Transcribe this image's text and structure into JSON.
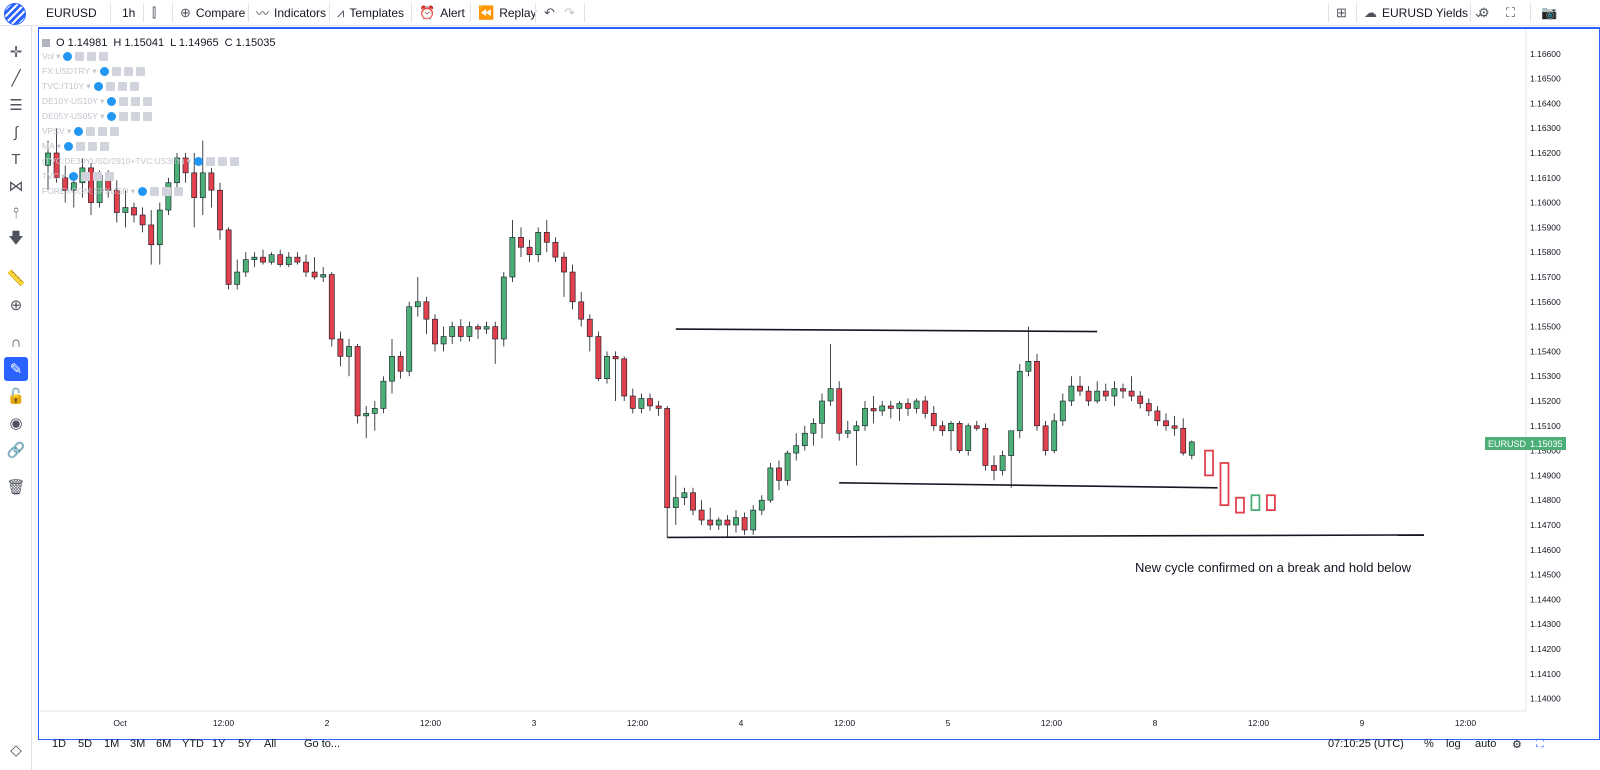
{
  "toolbar": {
    "symbol": "EURUSD",
    "interval": "1h",
    "compare": "Compare",
    "indicators": "Indicators",
    "templates": "Templates",
    "alert": "Alert",
    "replay": "Replay",
    "layout_name": "EURUSD Yields"
  },
  "legend": {
    "open": "O 1.14981",
    "high": "H 1.15041",
    "low": "L 1.14965",
    "close": "C 1.15035",
    "studies": [
      "Vol",
      "FX:USDTRY",
      "TVC:IT10Y",
      "DE10Y-US10Y",
      "DE05Y-US05Y",
      "VPSV",
      "MA",
      "(TVC:DE30YUSD/2910+TVC:US30Y)",
      "TVC",
      "FOREXCOM:SPXUSD"
    ]
  },
  "price_scale": {
    "labels": [
      "1.16600",
      "1.16500",
      "1.16400",
      "1.16300",
      "1.16200",
      "1.16100",
      "1.16000",
      "1.15900",
      "1.15800",
      "1.15700",
      "1.15600",
      "1.15500",
      "1.15400",
      "1.15300",
      "1.15200",
      "1.15100",
      "1.15000",
      "1.14900",
      "1.14800",
      "1.14700",
      "1.14600",
      "1.14500",
      "1.14400",
      "1.14300",
      "1.14200",
      "1.14100",
      "1.14000"
    ],
    "current_symbol": "EURUSD",
    "current_price": "1.15035"
  },
  "time_scale": {
    "labels": [
      "Oct",
      "12:00",
      "2",
      "12:00",
      "3",
      "12:00",
      "4",
      "12:00",
      "5",
      "12:00",
      "8",
      "12:00",
      "9",
      "12:00"
    ]
  },
  "annotation": "New cycle confirmed on a break and hold below",
  "bottom": {
    "ranges": [
      "1D",
      "5D",
      "1M",
      "3M",
      "6M",
      "YTD",
      "1Y",
      "5Y",
      "All"
    ],
    "goto": "Go to...",
    "clock": "07:10:25 (UTC)",
    "percent": "%",
    "log": "log",
    "auto": "auto"
  },
  "colors": {
    "up": "#4caf78",
    "down": "#e0414d",
    "accent": "#2962ff"
  },
  "chart_data": {
    "type": "candlestick",
    "symbol": "EURUSD",
    "interval": "1h",
    "ylim": [
      1.1395,
      1.167
    ],
    "candles": [
      {
        "o": 1.1615,
        "h": 1.1625,
        "l": 1.1605,
        "c": 1.162
      },
      {
        "o": 1.162,
        "h": 1.163,
        "l": 1.1608,
        "c": 1.161
      },
      {
        "o": 1.161,
        "h": 1.1615,
        "l": 1.16,
        "c": 1.1605
      },
      {
        "o": 1.1605,
        "h": 1.1612,
        "l": 1.1598,
        "c": 1.1608
      },
      {
        "o": 1.1608,
        "h": 1.1618,
        "l": 1.1602,
        "c": 1.1614
      },
      {
        "o": 1.1614,
        "h": 1.1616,
        "l": 1.1595,
        "c": 1.16
      },
      {
        "o": 1.16,
        "h": 1.1613,
        "l": 1.1598,
        "c": 1.1611
      },
      {
        "o": 1.1611,
        "h": 1.1613,
        "l": 1.1602,
        "c": 1.1605
      },
      {
        "o": 1.1605,
        "h": 1.1609,
        "l": 1.1592,
        "c": 1.1596
      },
      {
        "o": 1.1596,
        "h": 1.1605,
        "l": 1.159,
        "c": 1.1598
      },
      {
        "o": 1.1598,
        "h": 1.16,
        "l": 1.1592,
        "c": 1.1595
      },
      {
        "o": 1.1595,
        "h": 1.1598,
        "l": 1.1588,
        "c": 1.1591
      },
      {
        "o": 1.1591,
        "h": 1.1597,
        "l": 1.1575,
        "c": 1.1583
      },
      {
        "o": 1.1583,
        "h": 1.16,
        "l": 1.1575,
        "c": 1.1597
      },
      {
        "o": 1.1597,
        "h": 1.161,
        "l": 1.1595,
        "c": 1.1608
      },
      {
        "o": 1.1608,
        "h": 1.162,
        "l": 1.1605,
        "c": 1.1618
      },
      {
        "o": 1.1618,
        "h": 1.162,
        "l": 1.1608,
        "c": 1.1612
      },
      {
        "o": 1.1612,
        "h": 1.162,
        "l": 1.159,
        "c": 1.1602
      },
      {
        "o": 1.1602,
        "h": 1.1625,
        "l": 1.1595,
        "c": 1.1612
      },
      {
        "o": 1.1612,
        "h": 1.1614,
        "l": 1.1598,
        "c": 1.1605
      },
      {
        "o": 1.1605,
        "h": 1.1608,
        "l": 1.1585,
        "c": 1.1589
      },
      {
        "o": 1.1589,
        "h": 1.159,
        "l": 1.1565,
        "c": 1.1567
      },
      {
        "o": 1.1567,
        "h": 1.1577,
        "l": 1.1565,
        "c": 1.1572
      },
      {
        "o": 1.1572,
        "h": 1.158,
        "l": 1.157,
        "c": 1.1577
      },
      {
        "o": 1.1577,
        "h": 1.158,
        "l": 1.1574,
        "c": 1.1578
      },
      {
        "o": 1.1578,
        "h": 1.1581,
        "l": 1.1575,
        "c": 1.1576
      },
      {
        "o": 1.1576,
        "h": 1.158,
        "l": 1.1575,
        "c": 1.1579
      },
      {
        "o": 1.1579,
        "h": 1.1581,
        "l": 1.1574,
        "c": 1.1575
      },
      {
        "o": 1.1575,
        "h": 1.158,
        "l": 1.1574,
        "c": 1.1578
      },
      {
        "o": 1.1578,
        "h": 1.158,
        "l": 1.1575,
        "c": 1.1576
      },
      {
        "o": 1.1576,
        "h": 1.1579,
        "l": 1.157,
        "c": 1.1572
      },
      {
        "o": 1.1572,
        "h": 1.1578,
        "l": 1.1569,
        "c": 1.157
      },
      {
        "o": 1.157,
        "h": 1.1574,
        "l": 1.1568,
        "c": 1.1571
      },
      {
        "o": 1.1571,
        "h": 1.1572,
        "l": 1.1542,
        "c": 1.1545
      },
      {
        "o": 1.1545,
        "h": 1.1548,
        "l": 1.1534,
        "c": 1.1538
      },
      {
        "o": 1.1538,
        "h": 1.1545,
        "l": 1.153,
        "c": 1.1542
      },
      {
        "o": 1.1542,
        "h": 1.1543,
        "l": 1.1511,
        "c": 1.1514
      },
      {
        "o": 1.1514,
        "h": 1.1518,
        "l": 1.1505,
        "c": 1.1515
      },
      {
        "o": 1.1515,
        "h": 1.152,
        "l": 1.1508,
        "c": 1.1517
      },
      {
        "o": 1.1517,
        "h": 1.153,
        "l": 1.1515,
        "c": 1.1528
      },
      {
        "o": 1.1528,
        "h": 1.1545,
        "l": 1.1523,
        "c": 1.1538
      },
      {
        "o": 1.1538,
        "h": 1.154,
        "l": 1.1529,
        "c": 1.1532
      },
      {
        "o": 1.1532,
        "h": 1.156,
        "l": 1.153,
        "c": 1.1558
      },
      {
        "o": 1.1558,
        "h": 1.157,
        "l": 1.1554,
        "c": 1.156
      },
      {
        "o": 1.156,
        "h": 1.1562,
        "l": 1.1547,
        "c": 1.1553
      },
      {
        "o": 1.1553,
        "h": 1.1555,
        "l": 1.154,
        "c": 1.1543
      },
      {
        "o": 1.1543,
        "h": 1.155,
        "l": 1.154,
        "c": 1.1546
      },
      {
        "o": 1.1546,
        "h": 1.1552,
        "l": 1.1543,
        "c": 1.155
      },
      {
        "o": 1.155,
        "h": 1.1553,
        "l": 1.1544,
        "c": 1.1546
      },
      {
        "o": 1.1546,
        "h": 1.1552,
        "l": 1.1544,
        "c": 1.155
      },
      {
        "o": 1.155,
        "h": 1.1551,
        "l": 1.1545,
        "c": 1.1549
      },
      {
        "o": 1.1549,
        "h": 1.1552,
        "l": 1.1547,
        "c": 1.155
      },
      {
        "o": 1.155,
        "h": 1.1552,
        "l": 1.1535,
        "c": 1.1545
      },
      {
        "o": 1.1545,
        "h": 1.1572,
        "l": 1.1542,
        "c": 1.157
      },
      {
        "o": 1.157,
        "h": 1.1593,
        "l": 1.1568,
        "c": 1.1586
      },
      {
        "o": 1.1586,
        "h": 1.159,
        "l": 1.1578,
        "c": 1.1582
      },
      {
        "o": 1.1582,
        "h": 1.1585,
        "l": 1.1576,
        "c": 1.1579
      },
      {
        "o": 1.1579,
        "h": 1.159,
        "l": 1.1576,
        "c": 1.1588
      },
      {
        "o": 1.1588,
        "h": 1.1593,
        "l": 1.158,
        "c": 1.1584
      },
      {
        "o": 1.1584,
        "h": 1.1586,
        "l": 1.1576,
        "c": 1.1578
      },
      {
        "o": 1.1578,
        "h": 1.158,
        "l": 1.1562,
        "c": 1.1572
      },
      {
        "o": 1.1572,
        "h": 1.1575,
        "l": 1.1557,
        "c": 1.156
      },
      {
        "o": 1.156,
        "h": 1.1564,
        "l": 1.155,
        "c": 1.1553
      },
      {
        "o": 1.1553,
        "h": 1.1555,
        "l": 1.154,
        "c": 1.1546
      },
      {
        "o": 1.1546,
        "h": 1.1548,
        "l": 1.1528,
        "c": 1.1529
      },
      {
        "o": 1.1529,
        "h": 1.154,
        "l": 1.1527,
        "c": 1.1538
      },
      {
        "o": 1.1538,
        "h": 1.154,
        "l": 1.152,
        "c": 1.1537
      },
      {
        "o": 1.1537,
        "h": 1.1538,
        "l": 1.152,
        "c": 1.1522
      },
      {
        "o": 1.1522,
        "h": 1.1525,
        "l": 1.1515,
        "c": 1.1517
      },
      {
        "o": 1.1517,
        "h": 1.1523,
        "l": 1.1515,
        "c": 1.1521
      },
      {
        "o": 1.1521,
        "h": 1.1523,
        "l": 1.1516,
        "c": 1.1518
      },
      {
        "o": 1.1518,
        "h": 1.152,
        "l": 1.1514,
        "c": 1.1517
      },
      {
        "o": 1.1517,
        "h": 1.1518,
        "l": 1.1465,
        "c": 1.1477
      },
      {
        "o": 1.1477,
        "h": 1.149,
        "l": 1.147,
        "c": 1.1481
      },
      {
        "o": 1.1481,
        "h": 1.1485,
        "l": 1.1478,
        "c": 1.1483
      },
      {
        "o": 1.1483,
        "h": 1.1485,
        "l": 1.1474,
        "c": 1.1476
      },
      {
        "o": 1.1476,
        "h": 1.148,
        "l": 1.147,
        "c": 1.1472
      },
      {
        "o": 1.1472,
        "h": 1.1477,
        "l": 1.1468,
        "c": 1.147
      },
      {
        "o": 1.147,
        "h": 1.1473,
        "l": 1.1468,
        "c": 1.1472
      },
      {
        "o": 1.1472,
        "h": 1.1474,
        "l": 1.1465,
        "c": 1.147
      },
      {
        "o": 1.147,
        "h": 1.1476,
        "l": 1.1467,
        "c": 1.1473
      },
      {
        "o": 1.1473,
        "h": 1.1475,
        "l": 1.1466,
        "c": 1.1468
      },
      {
        "o": 1.1468,
        "h": 1.1478,
        "l": 1.1466,
        "c": 1.1476
      },
      {
        "o": 1.1476,
        "h": 1.1482,
        "l": 1.1474,
        "c": 1.148
      },
      {
        "o": 1.148,
        "h": 1.1495,
        "l": 1.1479,
        "c": 1.1493
      },
      {
        "o": 1.1493,
        "h": 1.1496,
        "l": 1.1484,
        "c": 1.1488
      },
      {
        "o": 1.1488,
        "h": 1.15,
        "l": 1.1486,
        "c": 1.1499
      },
      {
        "o": 1.1499,
        "h": 1.1507,
        "l": 1.1496,
        "c": 1.1502
      },
      {
        "o": 1.1502,
        "h": 1.151,
        "l": 1.15,
        "c": 1.1507
      },
      {
        "o": 1.1507,
        "h": 1.1513,
        "l": 1.1502,
        "c": 1.1511
      },
      {
        "o": 1.1511,
        "h": 1.1523,
        "l": 1.1505,
        "c": 1.152
      },
      {
        "o": 1.152,
        "h": 1.1543,
        "l": 1.1518,
        "c": 1.1525
      },
      {
        "o": 1.1525,
        "h": 1.1528,
        "l": 1.1504,
        "c": 1.1507
      },
      {
        "o": 1.1507,
        "h": 1.1512,
        "l": 1.1505,
        "c": 1.1508
      },
      {
        "o": 1.1508,
        "h": 1.1512,
        "l": 1.1494,
        "c": 1.151
      },
      {
        "o": 1.151,
        "h": 1.152,
        "l": 1.1508,
        "c": 1.1517
      },
      {
        "o": 1.1517,
        "h": 1.1522,
        "l": 1.1511,
        "c": 1.1516
      },
      {
        "o": 1.1516,
        "h": 1.152,
        "l": 1.1514,
        "c": 1.1518
      },
      {
        "o": 1.1518,
        "h": 1.152,
        "l": 1.1513,
        "c": 1.1517
      },
      {
        "o": 1.1517,
        "h": 1.152,
        "l": 1.1512,
        "c": 1.1519
      },
      {
        "o": 1.1519,
        "h": 1.1521,
        "l": 1.1514,
        "c": 1.1517
      },
      {
        "o": 1.1517,
        "h": 1.1521,
        "l": 1.1515,
        "c": 1.152
      },
      {
        "o": 1.152,
        "h": 1.1522,
        "l": 1.1513,
        "c": 1.1515
      },
      {
        "o": 1.1515,
        "h": 1.1518,
        "l": 1.1508,
        "c": 1.151
      },
      {
        "o": 1.151,
        "h": 1.1512,
        "l": 1.1506,
        "c": 1.1508
      },
      {
        "o": 1.1508,
        "h": 1.1512,
        "l": 1.15,
        "c": 1.1511
      },
      {
        "o": 1.1511,
        "h": 1.1512,
        "l": 1.1499,
        "c": 1.15
      },
      {
        "o": 1.15,
        "h": 1.1511,
        "l": 1.1498,
        "c": 1.151
      },
      {
        "o": 1.151,
        "h": 1.1512,
        "l": 1.1508,
        "c": 1.1509
      },
      {
        "o": 1.1509,
        "h": 1.1511,
        "l": 1.1492,
        "c": 1.1494
      },
      {
        "o": 1.1494,
        "h": 1.1498,
        "l": 1.1488,
        "c": 1.1492
      },
      {
        "o": 1.1492,
        "h": 1.15,
        "l": 1.149,
        "c": 1.1498
      },
      {
        "o": 1.1498,
        "h": 1.1508,
        "l": 1.1485,
        "c": 1.1508
      },
      {
        "o": 1.1508,
        "h": 1.1535,
        "l": 1.1505,
        "c": 1.1532
      },
      {
        "o": 1.1532,
        "h": 1.155,
        "l": 1.153,
        "c": 1.1536
      },
      {
        "o": 1.1536,
        "h": 1.1539,
        "l": 1.1508,
        "c": 1.151
      },
      {
        "o": 1.151,
        "h": 1.1512,
        "l": 1.1498,
        "c": 1.15
      },
      {
        "o": 1.15,
        "h": 1.1515,
        "l": 1.1499,
        "c": 1.1512
      },
      {
        "o": 1.1512,
        "h": 1.1523,
        "l": 1.151,
        "c": 1.152
      },
      {
        "o": 1.152,
        "h": 1.153,
        "l": 1.1518,
        "c": 1.1526
      },
      {
        "o": 1.1526,
        "h": 1.153,
        "l": 1.1522,
        "c": 1.1524
      },
      {
        "o": 1.1524,
        "h": 1.1526,
        "l": 1.1518,
        "c": 1.152
      },
      {
        "o": 1.152,
        "h": 1.1528,
        "l": 1.1519,
        "c": 1.1524
      },
      {
        "o": 1.1524,
        "h": 1.1527,
        "l": 1.152,
        "c": 1.1522
      },
      {
        "o": 1.1522,
        "h": 1.1528,
        "l": 1.1518,
        "c": 1.1525
      },
      {
        "o": 1.1525,
        "h": 1.1527,
        "l": 1.1521,
        "c": 1.1524
      },
      {
        "o": 1.1524,
        "h": 1.153,
        "l": 1.152,
        "c": 1.1522
      },
      {
        "o": 1.1522,
        "h": 1.1524,
        "l": 1.1517,
        "c": 1.1519
      },
      {
        "o": 1.1519,
        "h": 1.1521,
        "l": 1.1514,
        "c": 1.1516
      },
      {
        "o": 1.1516,
        "h": 1.1518,
        "l": 1.151,
        "c": 1.1512
      },
      {
        "o": 1.1512,
        "h": 1.1515,
        "l": 1.1508,
        "c": 1.151
      },
      {
        "o": 1.151,
        "h": 1.1514,
        "l": 1.1506,
        "c": 1.1509
      },
      {
        "o": 1.1509,
        "h": 1.1513,
        "l": 1.1498,
        "c": 1.1499
      },
      {
        "o": 1.14981,
        "h": 1.15041,
        "l": 1.14965,
        "c": 1.15035
      }
    ],
    "projection": [
      {
        "o": 1.15,
        "h": 1.15,
        "l": 1.149,
        "c": 1.149
      },
      {
        "o": 1.1495,
        "h": 1.1495,
        "l": 1.1478,
        "c": 1.1478
      },
      {
        "o": 1.1481,
        "h": 1.1481,
        "l": 1.1475,
        "c": 1.1475
      },
      {
        "o": 1.1476,
        "h": 1.1482,
        "l": 1.1476,
        "c": 1.1482
      },
      {
        "o": 1.1482,
        "h": 1.1482,
        "l": 1.1476,
        "c": 1.1476
      }
    ],
    "levels": [
      {
        "name": "range-top",
        "x0": 73,
        "x1": 122,
        "y0": 1.1549,
        "y1": 1.1548
      },
      {
        "name": "range-bottom",
        "x0": 92,
        "x1": 136,
        "y0": 1.1487,
        "y1": 1.1485
      },
      {
        "name": "support",
        "x0": 72,
        "x1": 160,
        "y0": 1.1465,
        "y1": 1.1466
      }
    ]
  }
}
